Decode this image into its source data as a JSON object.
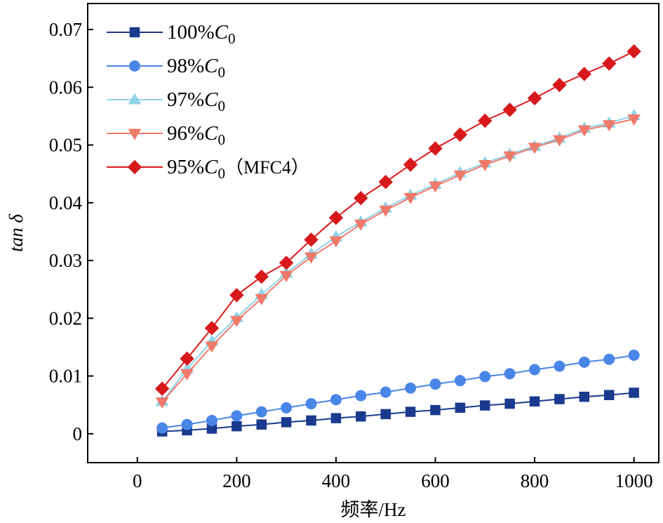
{
  "chart_data": {
    "type": "line",
    "title": "",
    "xlabel": "频率/Hz",
    "ylabel": "tan δ",
    "xlim": [
      -100,
      1050
    ],
    "ylim": [
      -0.005,
      0.0745
    ],
    "xticks": [
      0,
      200,
      400,
      600,
      800,
      1000
    ],
    "xtick_labels": [
      "0",
      "200",
      "400",
      "600",
      "800",
      "1000"
    ],
    "yticks": [
      0,
      0.01,
      0.02,
      0.03,
      0.04,
      0.05,
      0.06,
      0.07
    ],
    "ytick_labels": [
      "0",
      "0.01",
      "0.02",
      "0.03",
      "0.04",
      "0.05",
      "0.06",
      "0.07"
    ],
    "grid": false,
    "legend_position": "top-left",
    "x": [
      50,
      100,
      150,
      200,
      250,
      300,
      350,
      400,
      450,
      500,
      550,
      600,
      650,
      700,
      750,
      800,
      850,
      900,
      950,
      1000
    ],
    "series": [
      {
        "name": "100%C0",
        "legend": {
          "prefix": "100%",
          "var": "C",
          "sub": "0",
          "suffix": ""
        },
        "color": "#1a3a8f",
        "marker": "square",
        "values": [
          0.0004,
          0.0006,
          0.0009,
          0.0013,
          0.0016,
          0.002,
          0.0023,
          0.0027,
          0.003,
          0.0034,
          0.0038,
          0.0041,
          0.0045,
          0.0049,
          0.0052,
          0.0056,
          0.006,
          0.0064,
          0.0067,
          0.0071
        ]
      },
      {
        "name": "98%C0",
        "legend": {
          "prefix": "98%",
          "var": "C",
          "sub": "0",
          "suffix": ""
        },
        "color": "#4a86e8",
        "marker": "circle",
        "values": [
          0.001,
          0.0016,
          0.0023,
          0.0031,
          0.0038,
          0.0045,
          0.0052,
          0.0059,
          0.0066,
          0.0072,
          0.0079,
          0.0086,
          0.0092,
          0.0099,
          0.0104,
          0.0111,
          0.0117,
          0.0124,
          0.0129,
          0.0136
        ]
      },
      {
        "name": "97%C0",
        "legend": {
          "prefix": "97%",
          "var": "C",
          "sub": "0",
          "suffix": ""
        },
        "color": "#8fd3e8",
        "marker": "triangle-up",
        "values": [
          0.0056,
          0.0112,
          0.016,
          0.0201,
          0.0241,
          0.0278,
          0.0311,
          0.0341,
          0.0367,
          0.0391,
          0.0413,
          0.0432,
          0.0452,
          0.0469,
          0.0484,
          0.0498,
          0.0512,
          0.0529,
          0.0538,
          0.0551
        ]
      },
      {
        "name": "96%C0",
        "legend": {
          "prefix": "96%",
          "var": "C",
          "sub": "0",
          "suffix": ""
        },
        "color": "#f07a6a",
        "marker": "triangle-down",
        "values": [
          0.0055,
          0.0104,
          0.0152,
          0.0196,
          0.0234,
          0.0274,
          0.0306,
          0.0334,
          0.0363,
          0.0387,
          0.0409,
          0.0429,
          0.0448,
          0.0466,
          0.0481,
          0.0496,
          0.0509,
          0.0526,
          0.0535,
          0.0545
        ]
      },
      {
        "name": "95%C0（MFC4）",
        "legend": {
          "prefix": "95%",
          "var": "C",
          "sub": "0",
          "suffix": "（MFC4）"
        },
        "color": "#d7191c",
        "marker": "diamond",
        "values": [
          0.0078,
          0.013,
          0.0183,
          0.024,
          0.0272,
          0.0296,
          0.0336,
          0.0374,
          0.0408,
          0.0436,
          0.0466,
          0.0494,
          0.0518,
          0.0542,
          0.0561,
          0.0581,
          0.0604,
          0.0623,
          0.0641,
          0.0662
        ]
      }
    ]
  }
}
